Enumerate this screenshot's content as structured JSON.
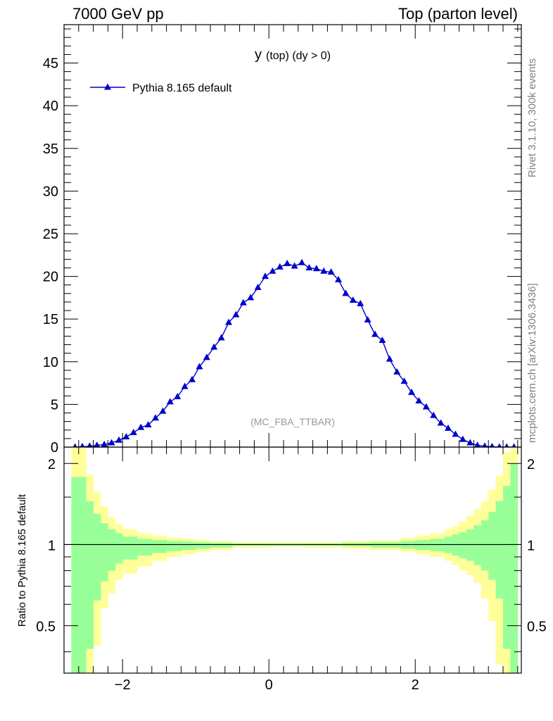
{
  "header": {
    "energy": "7000 GeV pp",
    "process": "Top (parton level)"
  },
  "side_labels": {
    "rivet": "Rivet 3.1.10,  300k events",
    "site": "mcplots.cern.ch [arXiv:1306.3436]"
  },
  "colors": {
    "series": "#0000cc",
    "band_inner": "#99ff99",
    "band_outer": "#ffff99",
    "gray": "#999999"
  },
  "chart_data": [
    {
      "type": "line",
      "name": "main",
      "title_main": "y",
      "title_sub": "(top) (dy > 0)",
      "analysis_tag": "(MC_FBA_TTBAR)",
      "xlim": [
        -2.8,
        3.45
      ],
      "ylim": [
        0,
        49.5
      ],
      "yticks": [
        0,
        5,
        10,
        15,
        20,
        25,
        30,
        35,
        40,
        45
      ],
      "ytick_labels": [
        "0",
        "5",
        "10",
        "15",
        "20",
        "25",
        "30",
        "35",
        "40",
        "45"
      ],
      "series": [
        {
          "name": "Pythia 8.165 default",
          "marker": "triangle",
          "x": [
            -2.65,
            -2.55,
            -2.45,
            -2.35,
            -2.25,
            -2.15,
            -2.05,
            -1.95,
            -1.85,
            -1.75,
            -1.65,
            -1.55,
            -1.45,
            -1.35,
            -1.25,
            -1.15,
            -1.05,
            -0.95,
            -0.85,
            -0.75,
            -0.65,
            -0.55,
            -0.45,
            -0.35,
            -0.25,
            -0.15,
            -0.05,
            0.05,
            0.15,
            0.25,
            0.35,
            0.45,
            0.55,
            0.65,
            0.75,
            0.85,
            0.95,
            1.05,
            1.15,
            1.25,
            1.35,
            1.45,
            1.55,
            1.65,
            1.75,
            1.85,
            1.95,
            2.05,
            2.15,
            2.25,
            2.35,
            2.45,
            2.55,
            2.65,
            2.75,
            2.85,
            2.95,
            3.05,
            3.15,
            3.25,
            3.35
          ],
          "values": [
            0.0,
            0.05,
            0.1,
            0.2,
            0.3,
            0.5,
            0.8,
            1.2,
            1.7,
            2.3,
            2.6,
            3.4,
            4.2,
            5.3,
            5.9,
            7.1,
            7.9,
            9.4,
            10.5,
            11.7,
            12.8,
            14.6,
            15.5,
            16.9,
            17.5,
            18.7,
            20.0,
            20.6,
            21.1,
            21.5,
            21.2,
            21.6,
            21.0,
            20.9,
            20.6,
            20.5,
            19.6,
            18.0,
            17.2,
            16.8,
            14.9,
            13.2,
            12.5,
            10.3,
            8.8,
            7.7,
            6.4,
            5.4,
            4.7,
            3.7,
            2.8,
            2.2,
            1.5,
            0.9,
            0.5,
            0.2,
            0.1,
            0.05,
            0.0,
            0.0,
            0.0
          ]
        }
      ]
    },
    {
      "type": "area",
      "name": "ratio",
      "ylabel": "Ratio to Pythia 8.165 default",
      "xlim": [
        -2.8,
        3.45
      ],
      "ylim": [
        0.3333,
        2.3
      ],
      "scale": "log",
      "yticks": [
        0.5,
        1,
        2
      ],
      "ytick_labels": [
        "0.5",
        "1",
        "2"
      ],
      "xticks": [
        -2,
        0,
        2
      ],
      "xtick_labels": [
        "−2",
        "0",
        "2"
      ],
      "bin_edges": [
        -2.7,
        -2.5,
        -2.4,
        -2.3,
        -2.2,
        -2.1,
        -2.0,
        -1.8,
        -1.6,
        -1.4,
        -1.2,
        -1.0,
        -0.8,
        -0.5,
        0.0,
        0.5,
        1.0,
        1.4,
        1.8,
        2.0,
        2.2,
        2.4,
        2.5,
        2.6,
        2.7,
        2.8,
        2.9,
        3.0,
        3.1,
        3.2,
        3.3,
        3.4
      ],
      "inner_up": [
        1.78,
        1.45,
        1.3,
        1.2,
        1.14,
        1.1,
        1.07,
        1.05,
        1.04,
        1.03,
        1.025,
        1.02,
        1.015,
        1.01,
        1.01,
        1.01,
        1.015,
        1.02,
        1.03,
        1.04,
        1.05,
        1.07,
        1.09,
        1.11,
        1.14,
        1.18,
        1.23,
        1.32,
        1.45,
        1.65,
        2.0
      ],
      "outer_up": [
        3.0,
        1.82,
        1.56,
        1.38,
        1.26,
        1.19,
        1.14,
        1.1,
        1.08,
        1.06,
        1.05,
        1.04,
        1.03,
        1.02,
        1.02,
        1.02,
        1.03,
        1.04,
        1.06,
        1.08,
        1.1,
        1.14,
        1.17,
        1.22,
        1.28,
        1.35,
        1.45,
        1.6,
        1.8,
        2.2,
        3.0
      ],
      "inner_dn": [
        0.22,
        0.41,
        0.62,
        0.73,
        0.8,
        0.85,
        0.88,
        0.91,
        0.93,
        0.945,
        0.955,
        0.965,
        0.975,
        0.99,
        0.99,
        0.99,
        0.985,
        0.975,
        0.965,
        0.955,
        0.945,
        0.93,
        0.91,
        0.89,
        0.87,
        0.84,
        0.8,
        0.74,
        0.63,
        0.41,
        0.22
      ],
      "outer_dn": [
        0.1,
        0.2,
        0.42,
        0.58,
        0.66,
        0.74,
        0.78,
        0.83,
        0.87,
        0.9,
        0.92,
        0.94,
        0.955,
        0.975,
        0.98,
        0.975,
        0.965,
        0.955,
        0.94,
        0.92,
        0.9,
        0.87,
        0.84,
        0.8,
        0.77,
        0.72,
        0.63,
        0.52,
        0.36,
        0.2,
        0.1
      ]
    }
  ]
}
